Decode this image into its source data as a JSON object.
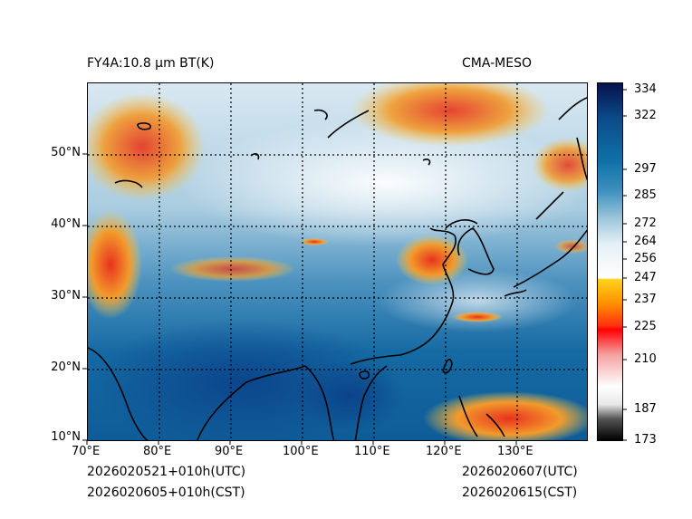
{
  "title_left": "FY4A:10.8 µm BT(K)",
  "title_right": "CMA-MESO",
  "footer": {
    "init_utc": "2026020521+010h(UTC)",
    "init_cst": "2026020605+010h(CST)",
    "valid_utc": "2026020607(UTC)",
    "valid_cst": "2026020615(CST)"
  },
  "map": {
    "lon_range": [
      70,
      140
    ],
    "lat_range": [
      10,
      60
    ],
    "lon_ticks": [
      "70°E",
      "80°E",
      "90°E",
      "100°E",
      "110°E",
      "120°E",
      "130°E"
    ],
    "lat_ticks": [
      "10°N",
      "20°N",
      "30°N",
      "40°N",
      "50°N"
    ]
  },
  "colorbar": {
    "min": 173,
    "max": 337,
    "ticks": [
      "173",
      "187",
      "210",
      "225",
      "237",
      "247",
      "256",
      "264",
      "272",
      "285",
      "297",
      "322",
      "334"
    ]
  }
}
